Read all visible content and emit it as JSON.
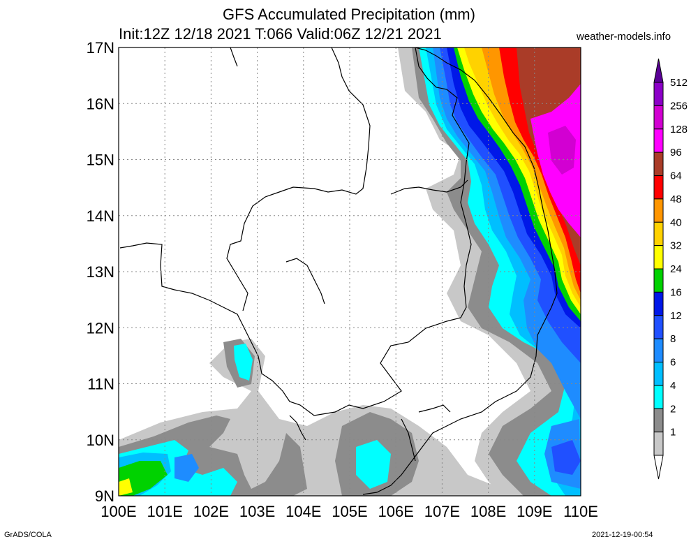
{
  "header": {
    "title": "GFS Accumulated Precipitation (mm)",
    "subtitle": "Init:12Z 12/18 2021 T:066 Valid:06Z 12/21 2021",
    "site": "weather-models.info"
  },
  "footer": {
    "left": "GrADS/COLA",
    "right": "2021-12-19-00:54"
  },
  "map": {
    "lat_labels": [
      "17N",
      "16N",
      "15N",
      "14N",
      "13N",
      "12N",
      "11N",
      "10N",
      "9N"
    ],
    "lon_labels": [
      "100E",
      "101E",
      "102E",
      "103E",
      "104E",
      "105E",
      "106E",
      "107E",
      "108E",
      "109E",
      "110E"
    ],
    "lat_range": [
      9,
      17
    ],
    "lon_range": [
      100,
      110
    ],
    "grid": "dotted"
  },
  "colorbar": {
    "labels": [
      "512",
      "256",
      "128",
      "96",
      "64",
      "48",
      "40",
      "32",
      "24",
      "16",
      "12",
      "8",
      "6",
      "4",
      "2",
      "1"
    ],
    "colors": {
      "1": "#c8c8c8",
      "2": "#8c8c8c",
      "4": "#00ffff",
      "6": "#00bfff",
      "8": "#1e8cff",
      "12": "#2050ff",
      "16": "#0018e8",
      "24": "#00d200",
      "32": "#ffff00",
      "40": "#ffd200",
      "48": "#ff9600",
      "64": "#ff0000",
      "96": "#aa3c28",
      "128": "#ff00ff",
      "256": "#d200d2",
      "512": "#8c00c8",
      "top": "#5a0096"
    }
  }
}
